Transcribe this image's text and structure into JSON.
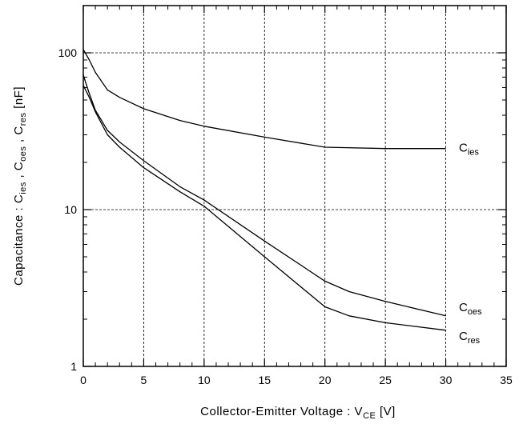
{
  "chart_data": {
    "type": "line",
    "x_scale": "linear",
    "y_scale": "log",
    "xlim": [
      0,
      35
    ],
    "ylim": [
      1,
      200
    ],
    "x_ticks": [
      "0",
      "5",
      "10",
      "15",
      "20",
      "25",
      "30",
      "35"
    ],
    "y_ticks": [
      "1",
      "10",
      "100"
    ],
    "xlabel": {
      "text": "Collector-Emitter Voltage : V",
      "sub": "CE",
      "unit": " [V]"
    },
    "ylabel": {
      "p1": "Capacitance : C",
      "s1": "ies",
      "p2": " , C",
      "s2": "oes",
      "p3": " , C",
      "s3": "res",
      "p4": " [nF]"
    },
    "grid": true,
    "series": [
      {
        "name": "C ies",
        "label_main": "C",
        "label_sub": "ies",
        "x": [
          0,
          0.5,
          1,
          2,
          3,
          5,
          8,
          10,
          15,
          20,
          25,
          30
        ],
        "y": [
          105,
          90,
          75,
          58,
          52,
          44,
          37,
          34,
          29,
          25,
          24.5,
          24.5
        ]
      },
      {
        "name": "C oes",
        "label_main": "C",
        "label_sub": "oes",
        "x": [
          0,
          0.5,
          1,
          2,
          3,
          5,
          8,
          10,
          15,
          20,
          22,
          25,
          30
        ],
        "y": [
          72,
          55,
          43,
          32,
          27,
          20.5,
          14,
          11.5,
          6.3,
          3.5,
          3.0,
          2.6,
          2.1
        ]
      },
      {
        "name": "C res",
        "label_main": "C",
        "label_sub": "res",
        "x": [
          0,
          0.5,
          1,
          2,
          3,
          5,
          8,
          10,
          15,
          20,
          22,
          25,
          30
        ],
        "y": [
          62,
          52,
          42,
          30,
          25,
          18.5,
          13,
          10.5,
          5.0,
          2.4,
          2.1,
          1.9,
          1.7
        ]
      }
    ]
  }
}
